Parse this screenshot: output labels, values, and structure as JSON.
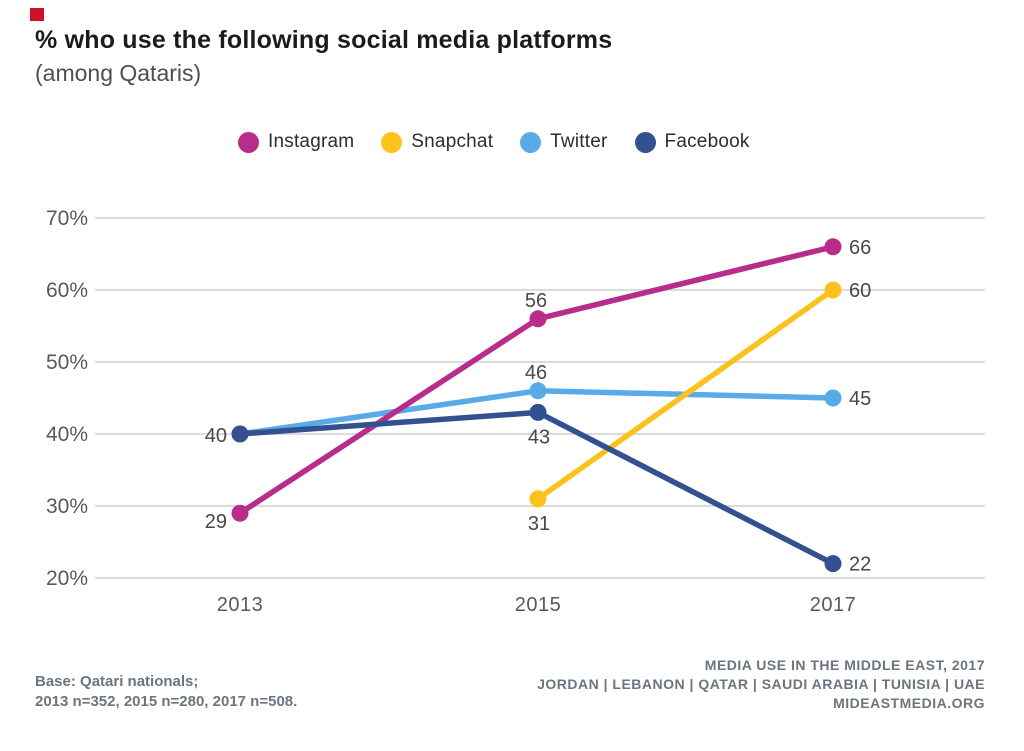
{
  "page": {
    "title": "% who use the following social media platforms",
    "subtitle": "(among Qataris)"
  },
  "brand": {
    "mark_color": "#ce1126"
  },
  "legend": [
    {
      "label": "Instagram",
      "color": "#b82c8c"
    },
    {
      "label": "Snapchat",
      "color": "#fbc21d"
    },
    {
      "label": "Twitter",
      "color": "#58abe8"
    },
    {
      "label": "Facebook",
      "color": "#33508f"
    }
  ],
  "chart_data": {
    "type": "line",
    "title": "% who use the following social media platforms (among Qataris)",
    "x": [
      "2013",
      "2015",
      "2017"
    ],
    "y_ticks": [
      70,
      60,
      50,
      40,
      30,
      20
    ],
    "y_tick_suffix": "%",
    "ylim": [
      20,
      70
    ],
    "grid": true,
    "gridline_color": "#dbdbdb",
    "legend_position": "top",
    "series": [
      {
        "name": "Instagram",
        "color": "#b82c8c",
        "values": [
          29,
          56,
          66
        ],
        "label_pos": [
          "left-below",
          "above",
          "right"
        ]
      },
      {
        "name": "Snapchat",
        "color": "#fbc21d",
        "values": [
          null,
          31,
          60
        ],
        "label_pos": [
          null,
          "below",
          "right"
        ]
      },
      {
        "name": "Twitter",
        "color": "#58abe8",
        "values": [
          40,
          46,
          45
        ],
        "label_pos": [
          "hidden",
          "above",
          "right"
        ]
      },
      {
        "name": "Facebook",
        "color": "#33508f",
        "values": [
          40,
          43,
          22
        ],
        "label_pos": [
          "left",
          "below",
          "right"
        ]
      }
    ],
    "z_order": [
      "Twitter",
      "Snapchat",
      "Instagram",
      "Facebook"
    ]
  },
  "footer": {
    "base_line1": "Base: Qatari nationals;",
    "base_line2": "2013 n=352, 2015 n=280, 2017 n=508.",
    "source_line1": "MEDIA USE IN THE MIDDLE EAST, 2017",
    "source_line2": "JORDAN | LEBANON | QATAR | SAUDI ARABIA | TUNISIA | UAE",
    "source_line3": "MIDEASTMEDIA.ORG"
  }
}
